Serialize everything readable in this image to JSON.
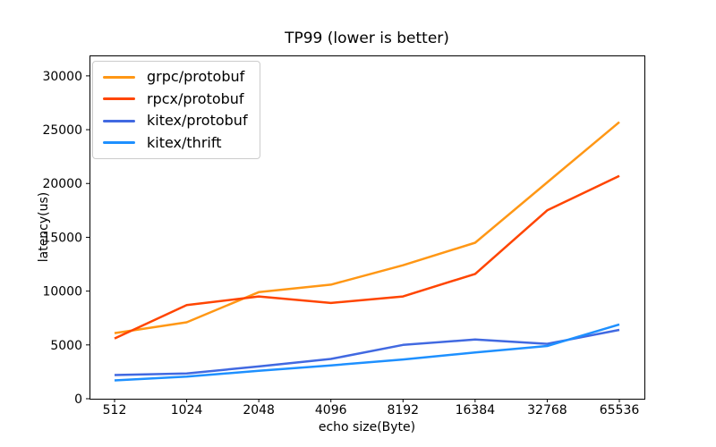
{
  "chart_data": {
    "type": "line",
    "title": "TP99 (lower is better)",
    "xlabel": "echo size(Byte)",
    "ylabel": "latency(us)",
    "categories": [
      "512",
      "1024",
      "2048",
      "4096",
      "8192",
      "16384",
      "32768",
      "65536"
    ],
    "series": [
      {
        "name": "grpc/protobuf",
        "color": "#ff9715",
        "values": [
          6100,
          7100,
          9900,
          10600,
          12400,
          14500,
          20100,
          25700
        ]
      },
      {
        "name": "rpcx/protobuf",
        "color": "#ff4500",
        "values": [
          5600,
          8700,
          9500,
          8900,
          9500,
          11600,
          17500,
          20700
        ]
      },
      {
        "name": "kitex/protobuf",
        "color": "#4169e1",
        "values": [
          2200,
          2350,
          3000,
          3700,
          5000,
          5500,
          5100,
          6400
        ]
      },
      {
        "name": "kitex/thrift",
        "color": "#1e90ff",
        "values": [
          1700,
          2050,
          2600,
          3100,
          3650,
          4300,
          4900,
          6900
        ]
      }
    ],
    "yticks": [
      0,
      5000,
      10000,
      15000,
      20000,
      25000,
      30000
    ],
    "ylim": [
      0,
      31900
    ],
    "grid": false,
    "legend_position": "upper left",
    "line_width": 2.5,
    "axis_color": "#000000",
    "background_color": "#ffffff"
  }
}
